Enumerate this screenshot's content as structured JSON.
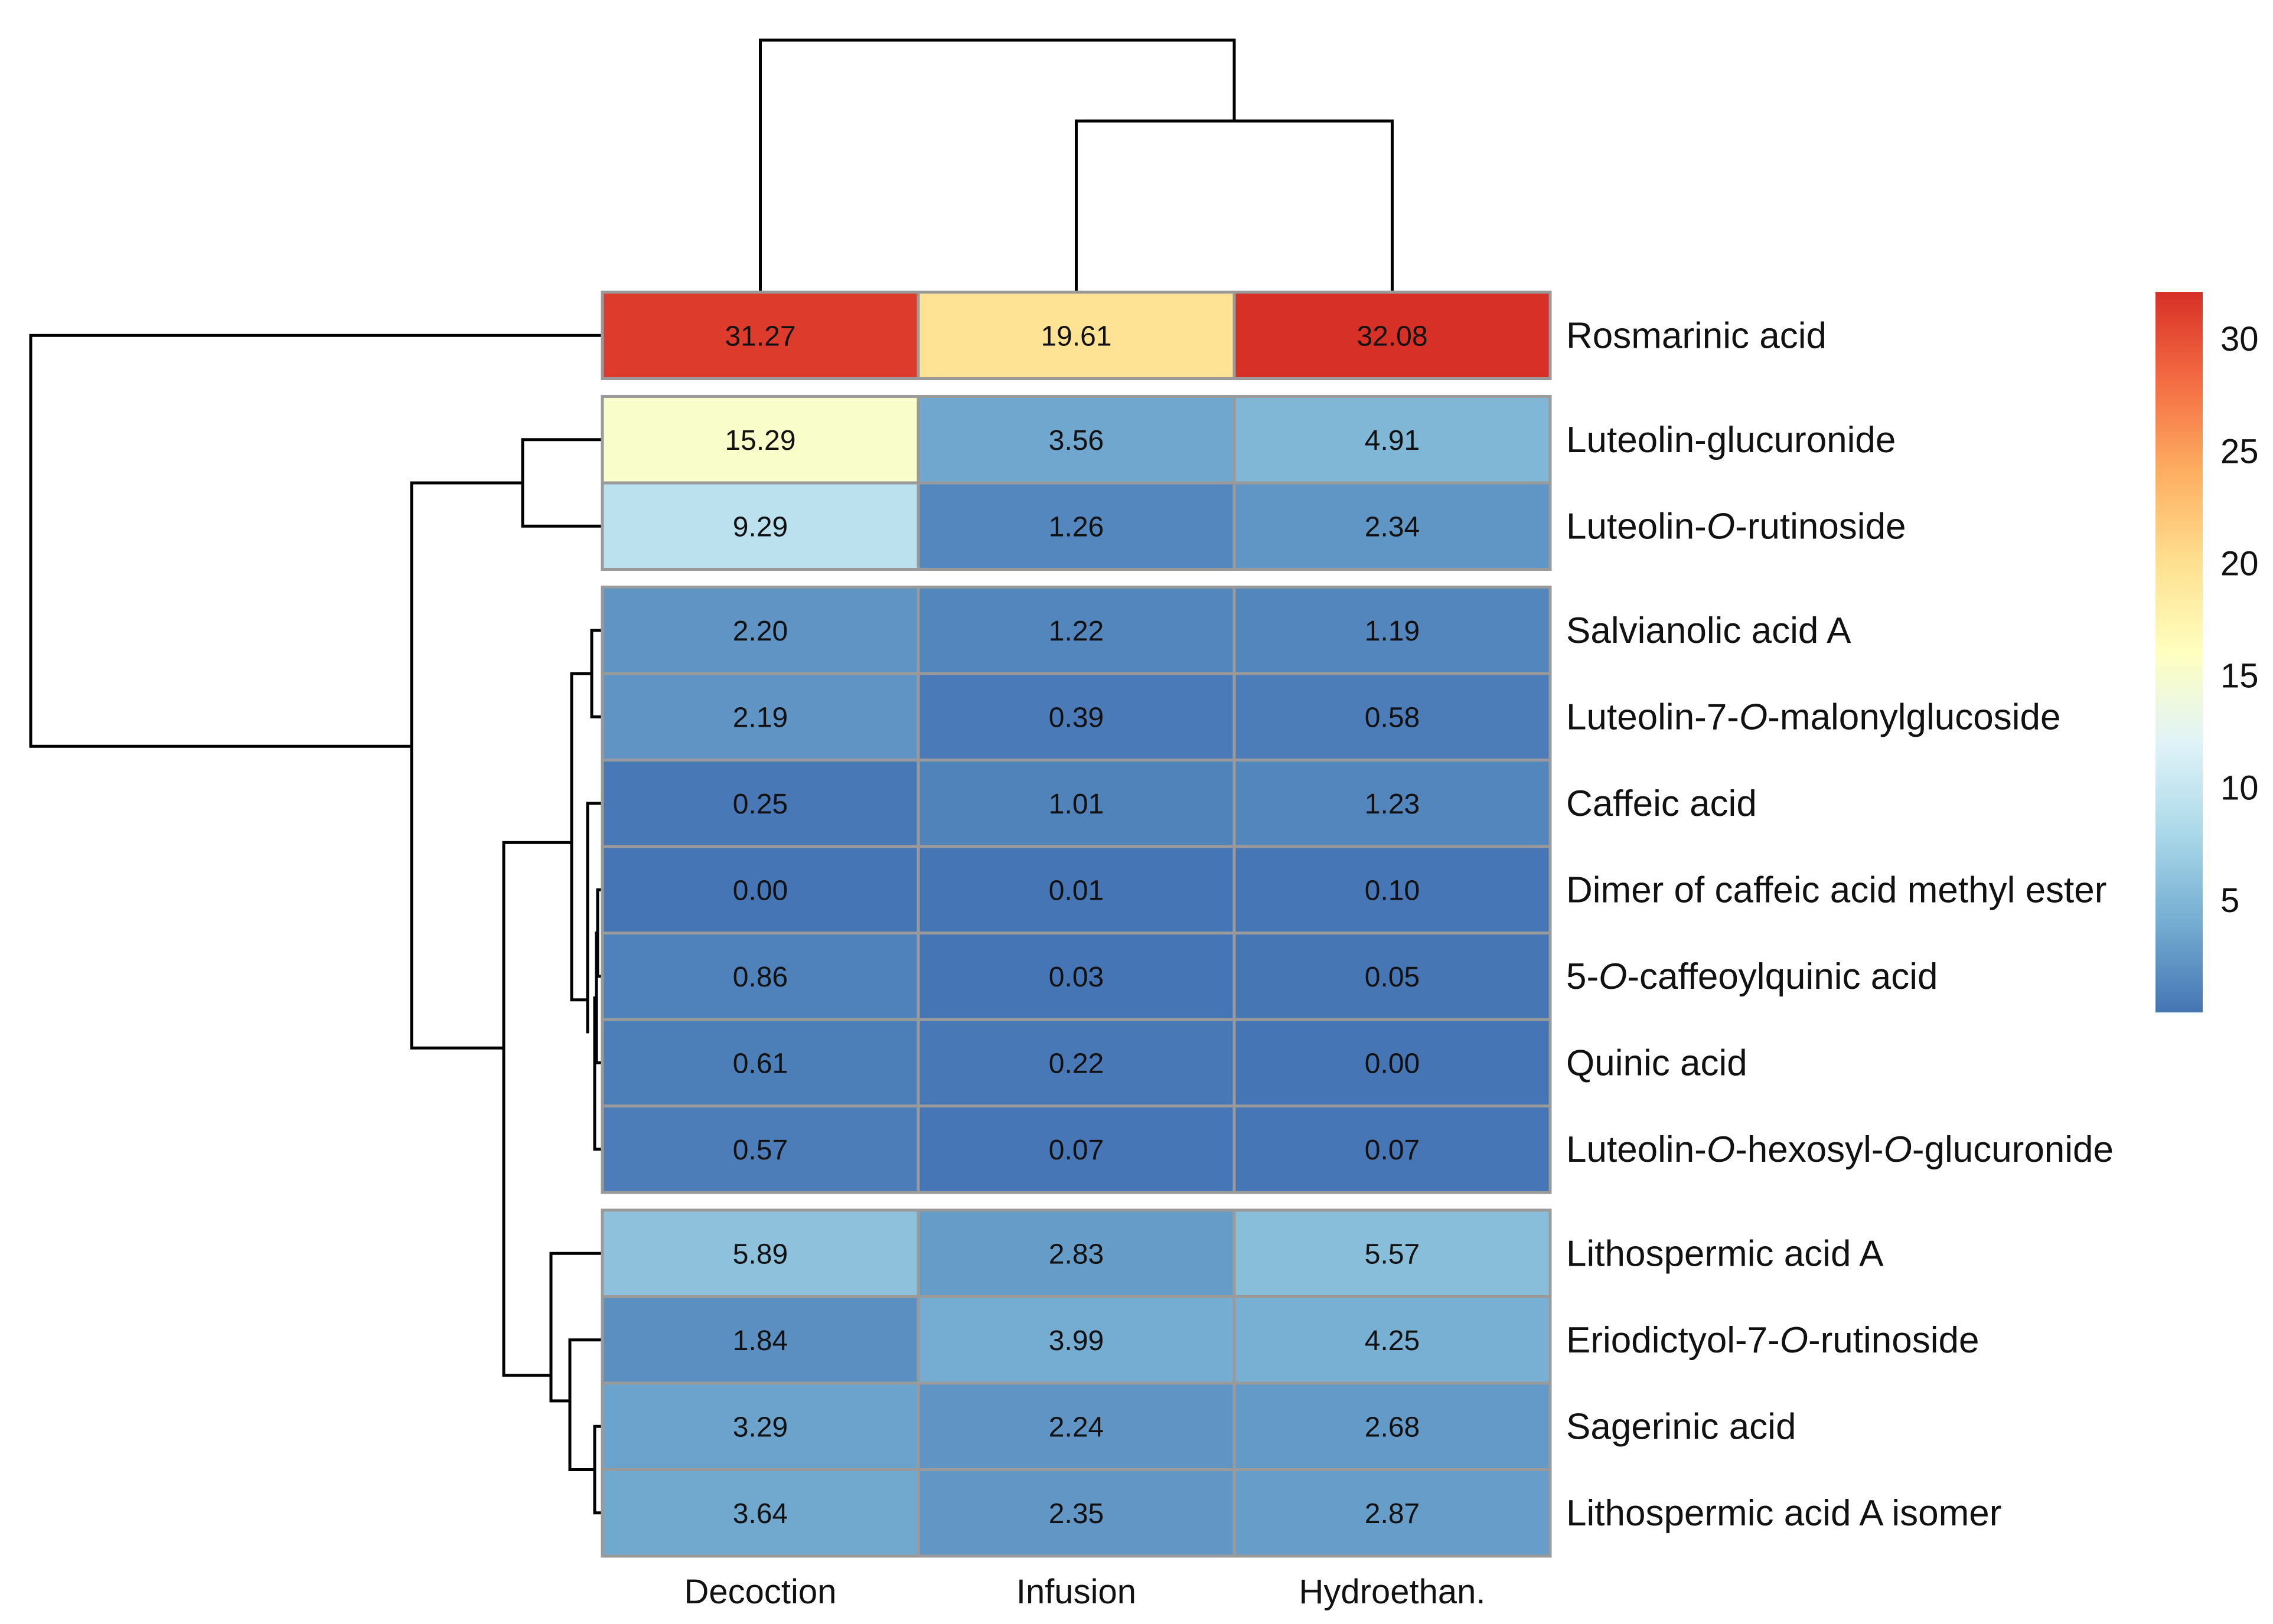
{
  "chart_data": {
    "type": "heatmap",
    "columns": [
      "Decoction",
      "Infusion",
      "Hydroethan."
    ],
    "rows": [
      {
        "name": [
          "Rosmarinic acid"
        ],
        "values": [
          31.27,
          19.61,
          32.08
        ]
      },
      {
        "name": [
          "Luteolin-glucuronide"
        ],
        "values": [
          15.29,
          3.56,
          4.91
        ]
      },
      {
        "name": [
          "Luteolin-",
          "O",
          "-rutinoside"
        ],
        "values": [
          9.29,
          1.26,
          2.34
        ]
      },
      {
        "name": [
          "Salvianolic acid A"
        ],
        "values": [
          2.2,
          1.22,
          1.19
        ]
      },
      {
        "name": [
          "Luteolin-7-",
          "O",
          "-malonylglucoside"
        ],
        "values": [
          2.19,
          0.39,
          0.58
        ]
      },
      {
        "name": [
          "Caffeic acid"
        ],
        "values": [
          0.25,
          1.01,
          1.23
        ]
      },
      {
        "name": [
          "Dimer of caffeic acid methyl ester"
        ],
        "values": [
          0.0,
          0.01,
          0.1
        ]
      },
      {
        "name": [
          "5-",
          "O",
          "-caffeoylquinic acid"
        ],
        "values": [
          0.86,
          0.03,
          0.05
        ]
      },
      {
        "name": [
          "Quinic acid"
        ],
        "values": [
          0.61,
          0.22,
          0.0
        ]
      },
      {
        "name": [
          "Luteolin-",
          "O",
          "-hexosyl-",
          "O",
          "-glucuronide"
        ],
        "values": [
          0.57,
          0.07,
          0.07
        ]
      },
      {
        "name": [
          "Lithospermic acid A"
        ],
        "values": [
          5.89,
          2.83,
          5.57
        ]
      },
      {
        "name": [
          "Eriodictyol-7-",
          "O",
          "-rutinoside"
        ],
        "values": [
          1.84,
          3.99,
          4.25
        ]
      },
      {
        "name": [
          "Sagerinic acid"
        ],
        "values": [
          3.29,
          2.24,
          2.68
        ]
      },
      {
        "name": [
          "Lithospermic acid A isomer"
        ],
        "values": [
          3.64,
          2.35,
          2.87
        ]
      }
    ],
    "row_groups": [
      [
        0,
        0
      ],
      [
        1,
        2
      ],
      [
        3,
        9
      ],
      [
        10,
        13
      ]
    ],
    "colorbar": {
      "ticks": [
        5,
        10,
        15,
        20,
        25,
        30
      ],
      "range": [
        0,
        32.08
      ],
      "colors": [
        "#4575b4",
        "#74add1",
        "#abd9e9",
        "#e0f3f8",
        "#ffffbf",
        "#fee090",
        "#fdae61",
        "#f46d43",
        "#d73027"
      ]
    },
    "value_format": "2 decimals",
    "title": "",
    "xlabel": "",
    "ylabel": ""
  }
}
